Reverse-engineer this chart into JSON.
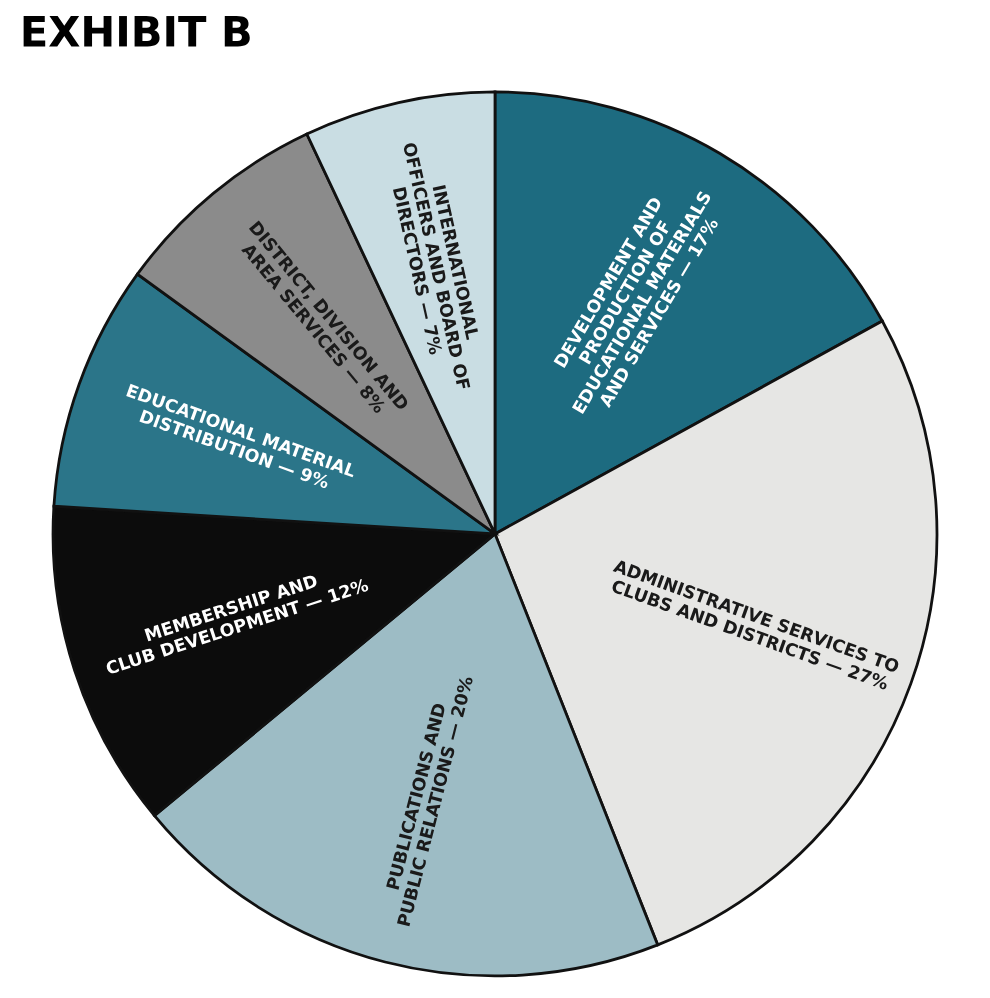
{
  "chart_data": {
    "type": "pie",
    "title": "EXHIBIT B",
    "categories": [
      "DEVELOPMENT AND\nPRODUCTION OF\nEDUCATIONAL MATERIALS\nAND SERVICES — 17%",
      "ADMINISTRATIVE SERVICES TO\nCLUBS AND DISTRICTS — 27%",
      "PUBLICATIONS AND\nPUBLIC RELATIONS — 20%",
      "MEMBERSHIP AND\nCLUB DEVELOPMENT — 12%",
      "EDUCATIONAL MATERIAL\nDISTRIBUTION — 9%",
      "DISTRICT, DIVISION AND\nAREA SERVICES — 8%",
      "INTERNATIONAL\nOFFICERS AND BOARD OF\nDIRECTORS — 7%"
    ],
    "values": [
      17,
      27,
      20,
      12,
      9,
      8,
      7
    ],
    "colors": [
      "#1d6b80",
      "#e6e6e4",
      "#9dbcc5",
      "#0c0c0c",
      "#2b7589",
      "#8b8b8b",
      "#c9dde3"
    ]
  }
}
